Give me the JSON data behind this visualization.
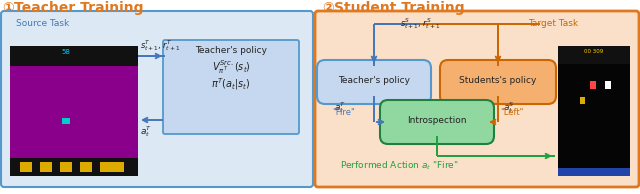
{
  "title_color": "#E07820",
  "left_box_edge": "#5599CC",
  "left_box_fill": "#DCE9F5",
  "right_box_edge": "#E07820",
  "right_box_fill": "#FAE0C8",
  "policy_box_fill": "#C5D8F0",
  "policy_box_edge": "#5599CC",
  "teacher_policy_fill": "#C5D8F0",
  "teacher_policy_edge": "#5599CC",
  "student_policy_fill": "#F5B070",
  "student_policy_edge": "#CC6600",
  "introspection_fill": "#90D8A0",
  "introspection_edge": "#208040",
  "arrow_blue": "#4477BB",
  "arrow_orange": "#CC6600",
  "arrow_green": "#20A040",
  "blue_text": "#4477BB",
  "orange_text": "#CC6600",
  "green_text": "#20A040",
  "source_task_label": "Source Task",
  "target_task_label": "Target Task",
  "teacher_policy_text": "Teacher's policy",
  "teacher_policy_math1": "$V_{\\pi^T}^{Src.}(s_t)$",
  "teacher_policy_math2": "$\\pi^T(a_t|s_t)$",
  "teacher_policy_label": "Teacher's policy",
  "students_policy_label": "Students's policy",
  "introspection_label": "Introspection",
  "arrow_label_s_r_T": "$s_{t+1}^T, r_{t+1}^T$",
  "arrow_label_a_T": "$a_t^T$",
  "arrow_label_s_r_S": "$s_{t+1}^S, r_{t+1}^S$",
  "arrow_label_a_T2": "$a_t^T$",
  "arrow_label_fire_T": "\"Fire\"",
  "arrow_label_a_S": "$a_t^S$",
  "arrow_label_left_S": "\"Left\"",
  "performed_action": "Performed Action $a_t$ \"Fire\""
}
